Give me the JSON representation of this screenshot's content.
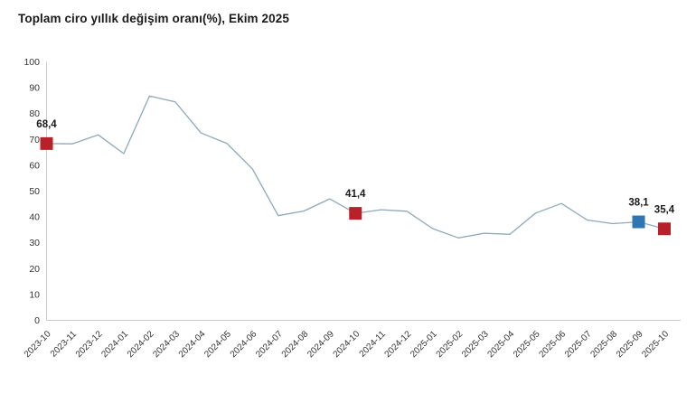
{
  "page": {
    "title": "Toplam ciro yıllık değişim oranı(%), Ekim 2025"
  },
  "chart_data": {
    "type": "line",
    "title": "Toplam ciro yıllık değişim oranı(%), Ekim 2025",
    "unit": "%",
    "xlabel": "",
    "ylabel": "",
    "ylim": [
      0,
      100
    ],
    "ytick_step": 10,
    "grid": false,
    "legend_position": "none",
    "line_color": "#8ea9b6",
    "axis_color": "#c9c9c9",
    "tick_label_color": "#333333",
    "data_label_color": "#1a1a1a",
    "categories": [
      "2023-10",
      "2023-11",
      "2023-12",
      "2024-01",
      "2024-02",
      "2024-03",
      "2024-04",
      "2024-05",
      "2024-06",
      "2024-07",
      "2024-08",
      "2024-09",
      "2024-10",
      "2024-11",
      "2024-12",
      "2025-01",
      "2025-02",
      "2025-03",
      "2025-04",
      "2025-05",
      "2025-06",
      "2025-07",
      "2025-08",
      "2025-09",
      "2025-10"
    ],
    "values": [
      68.4,
      68.3,
      71.8,
      64.5,
      86.8,
      84.5,
      72.5,
      68.5,
      58.6,
      40.5,
      42.3,
      47.0,
      41.4,
      42.8,
      42.2,
      35.5,
      31.9,
      33.7,
      33.3,
      41.5,
      45.2,
      38.8,
      37.4,
      38.1,
      35.4
    ],
    "highlighted_points": [
      {
        "index": 0,
        "category": "2023-10",
        "value": 68.4,
        "label": "68,4",
        "marker": "square",
        "color": "#b7212a"
      },
      {
        "index": 12,
        "category": "2024-10",
        "value": 41.4,
        "label": "41,4",
        "marker": "square",
        "color": "#b7212a"
      },
      {
        "index": 23,
        "category": "2025-09",
        "value": 38.1,
        "label": "38,1",
        "marker": "square",
        "color": "#2f76b5"
      },
      {
        "index": 24,
        "category": "2025-10",
        "value": 35.4,
        "label": "35,4",
        "marker": "square",
        "color": "#b7212a"
      }
    ]
  }
}
